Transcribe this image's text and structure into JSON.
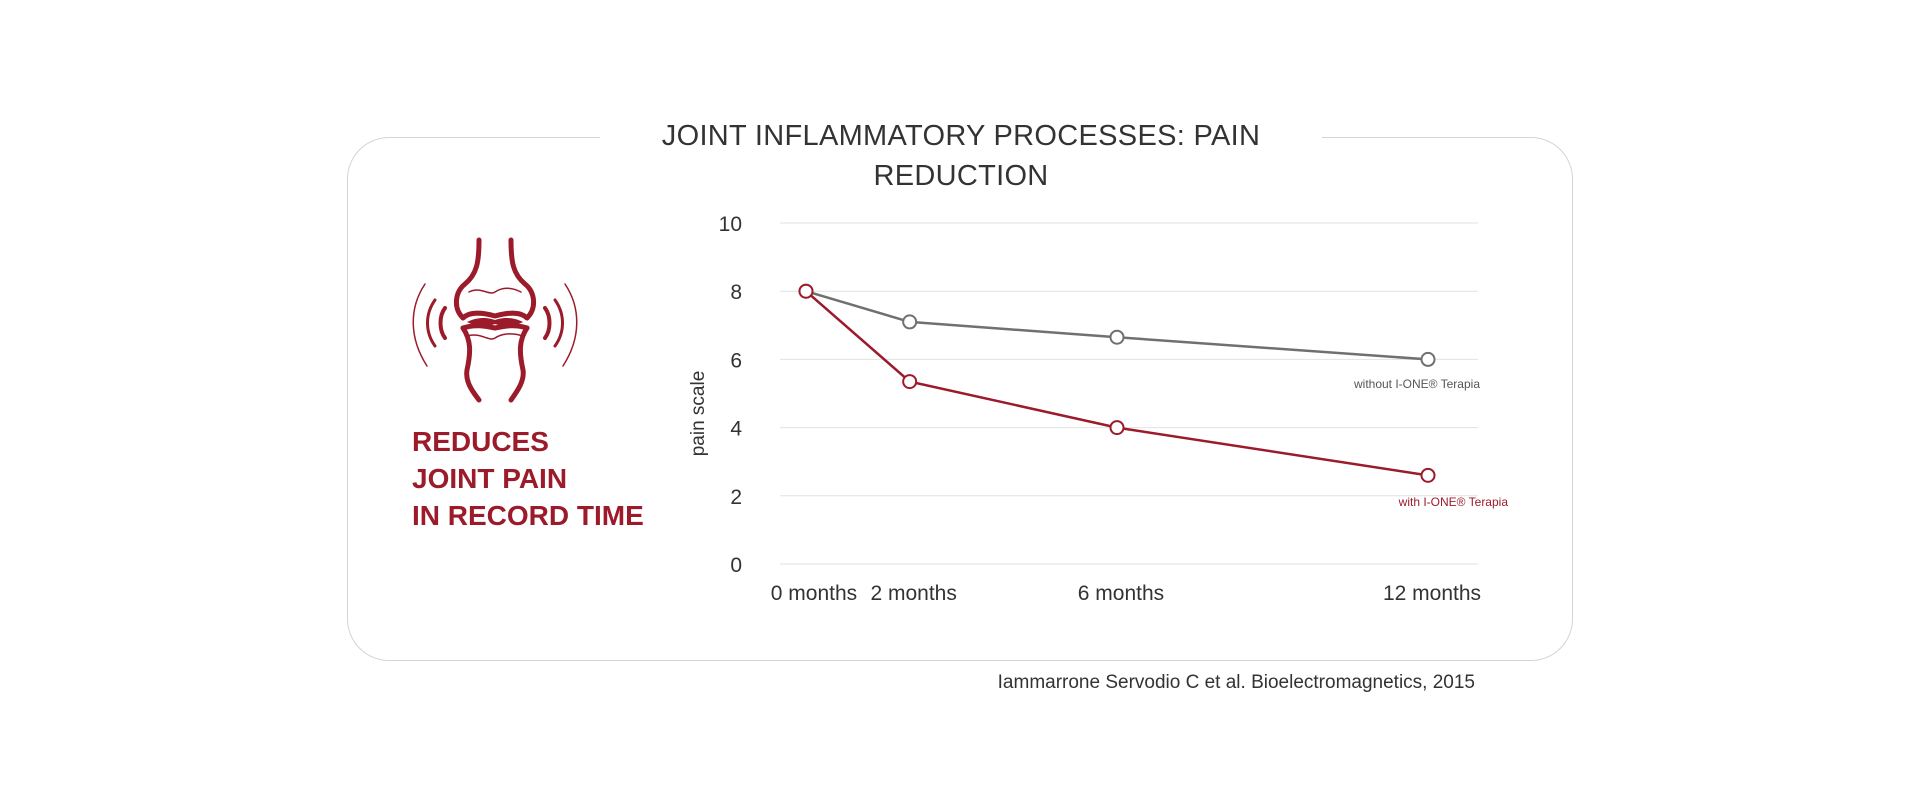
{
  "title": "JOINT INFLAMMATORY PROCESSES: PAIN REDUCTION",
  "tagline": [
    "REDUCES",
    "JOINT PAIN",
    "IN RECORD TIME"
  ],
  "source": "Iammarrone Servodio C et al. Bioelectromagnetics, 2015",
  "icon": "knee-joint-pain-icon",
  "colors": {
    "accent": "#9b1b2b",
    "grey": "#707070",
    "grid": "#e2e2e2"
  },
  "chart_data": {
    "type": "line",
    "title": "JOINT INFLAMMATORY PROCESSES: PAIN REDUCTION",
    "xlabel": "",
    "ylabel": "pain scale",
    "ylim": [
      0,
      10
    ],
    "yticks": [
      0,
      2,
      4,
      6,
      8,
      10
    ],
    "x": [
      0,
      2,
      6,
      12
    ],
    "xtick_labels": [
      "0 months",
      "2 months",
      "6 months",
      "12 months"
    ],
    "grid": true,
    "series": [
      {
        "name": "without I-ONE® Terapia",
        "color": "#707070",
        "values": [
          8.0,
          7.1,
          6.65,
          6.0
        ]
      },
      {
        "name": "with I-ONE® Terapia",
        "color": "#9b1b2b",
        "values": [
          8.0,
          5.35,
          4.0,
          2.6
        ]
      }
    ]
  }
}
